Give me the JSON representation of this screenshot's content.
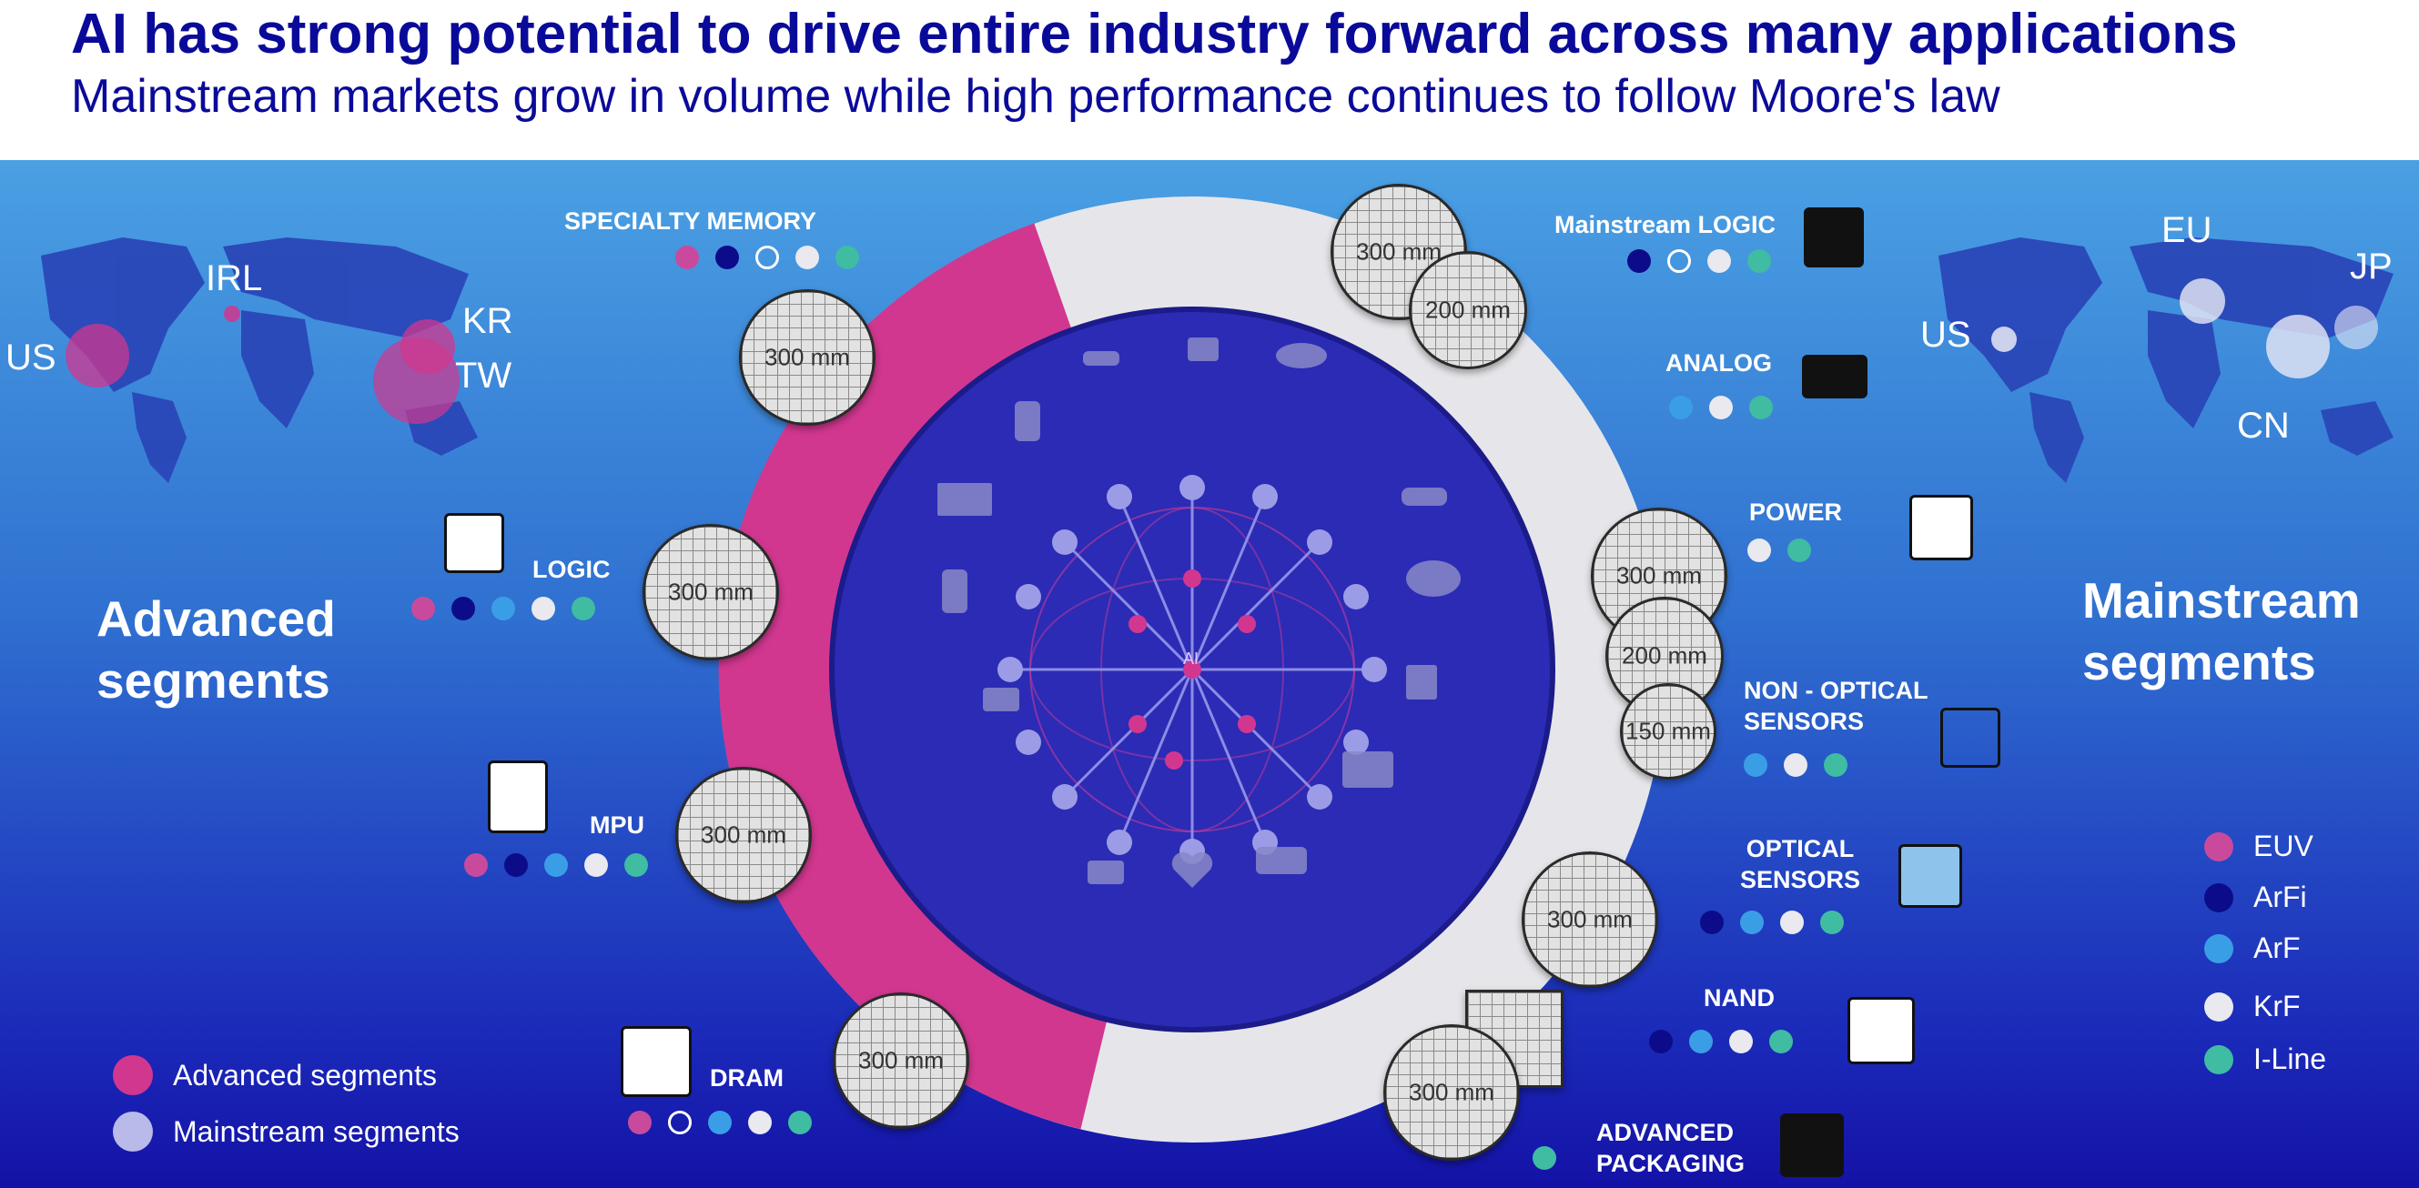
{
  "header": {
    "title": "AI has strong potential to drive entire industry forward across many applications",
    "subtitle": "Mainstream markets grow in volume while high performance continues to follow Moore's law"
  },
  "left": {
    "heading_line1": "Advanced",
    "heading_line2": "segments",
    "map_labels": [
      "US",
      "IRL",
      "KR",
      "TW"
    ]
  },
  "right": {
    "heading_line1": "Mainstream",
    "heading_line2": "segments",
    "map_labels": [
      "US",
      "EU",
      "JP",
      "CN"
    ]
  },
  "segments": {
    "specialty_memory": "SPECIALTY MEMORY",
    "logic": "LOGIC",
    "mpu": "MPU",
    "dram": "DRAM",
    "mainstream_logic": "Mainstream LOGIC",
    "analog": "ANALOG",
    "power": "POWER",
    "non_optical_1": "NON - OPTICAL",
    "non_optical_2": "SENSORS",
    "optical_1": "OPTICAL",
    "optical_2": "SENSORS",
    "nand": "NAND",
    "adv_pack_1": "ADVANCED",
    "adv_pack_2": "PACKAGING"
  },
  "wafers": {
    "w300": "300 mm",
    "w200": "200 mm",
    "w150": "150 mm"
  },
  "ai_label": "AI",
  "legend_left": [
    {
      "label": "Advanced segments",
      "color": "#d1378f"
    },
    {
      "label": "Mainstream segments",
      "color": "#b9b9ea"
    }
  ],
  "legend_right": [
    {
      "label": "EUV",
      "color": "#c94a9c"
    },
    {
      "label": "ArFi",
      "color": "#0c0c8a"
    },
    {
      "label": "ArF",
      "color": "#3a9ee6"
    },
    {
      "label": "KrF",
      "color": "#e9e9ef"
    },
    {
      "label": "I-Line",
      "color": "#3fbca2"
    }
  ],
  "colors": {
    "title": "#0a0a9a",
    "ring_advanced": "#d1378f",
    "ring_mainstream": "#e6e6ea",
    "core": "#2b2bb5"
  }
}
